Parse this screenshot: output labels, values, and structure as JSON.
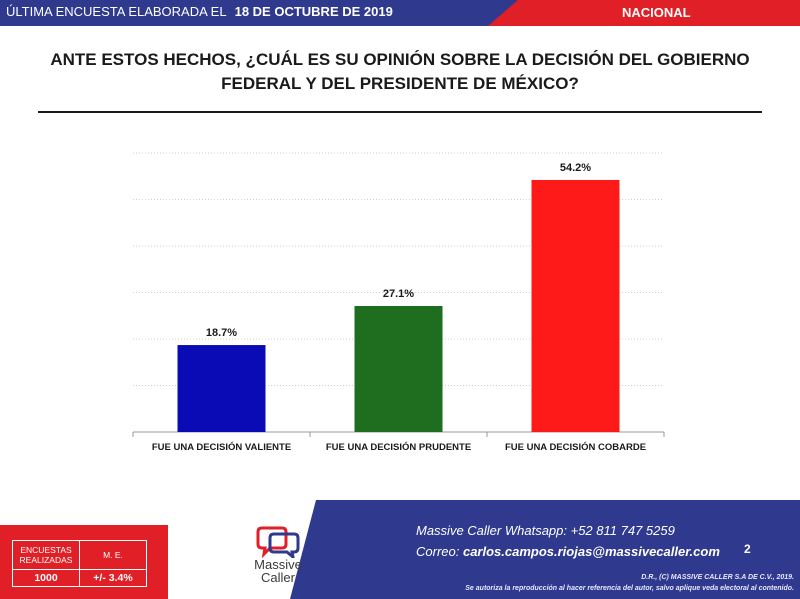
{
  "header": {
    "prefix": "ÚLTIMA ENCUESTA ELABORADA EL",
    "date": "18 DE OCTUBRE DE 2019",
    "region": "NACIONAL"
  },
  "question": {
    "line1": "ANTE ESTOS HECHOS, ¿CUÁL ES SU OPINIÓN SOBRE LA DECISIÓN DEL GOBIERNO",
    "line2": "FEDERAL Y DEL PRESIDENTE DE MÉXICO?"
  },
  "chart_data": {
    "type": "bar",
    "categories": [
      "FUE UNA DECISIÓN VALIENTE",
      "FUE UNA DECISIÓN PRUDENTE",
      "FUE UNA DECISIÓN COBARDE"
    ],
    "values": [
      18.7,
      27.1,
      54.2
    ],
    "value_labels": [
      "18.7%",
      "27.1%",
      "54.2%"
    ],
    "colors": [
      "#0b0bb5",
      "#1f6e1f",
      "#ff1a1a"
    ],
    "ylim": [
      0,
      60
    ],
    "gridlines": [
      10,
      20,
      30,
      40,
      50,
      60
    ],
    "grid": true,
    "title": "",
    "xlabel": "",
    "ylabel": ""
  },
  "footer": {
    "stats_headers": [
      "ENCUESTAS REALIZADAS",
      "M. E."
    ],
    "stats_values": [
      "1000",
      "+/- 3.4%"
    ],
    "logo_text_1": "Massive",
    "logo_text_2": "Caller",
    "contact_whatsapp": "Massive Caller Whatsapp:  +52 811 747 5259",
    "contact_email_label": "Correo: ",
    "contact_email": "carlos.campos.riojas@massivecaller.com",
    "page_number": "2",
    "copyright": "D.R., (C) MASSIVE CALLER S.A DE C.V., 2019.",
    "disclaimer": "Se autoriza la reproducción al hacer referencia del autor, salvo aplique veda electoral al contenido."
  },
  "colors": {
    "brand_blue": "#2f3a8f",
    "brand_red": "#e01f26"
  }
}
